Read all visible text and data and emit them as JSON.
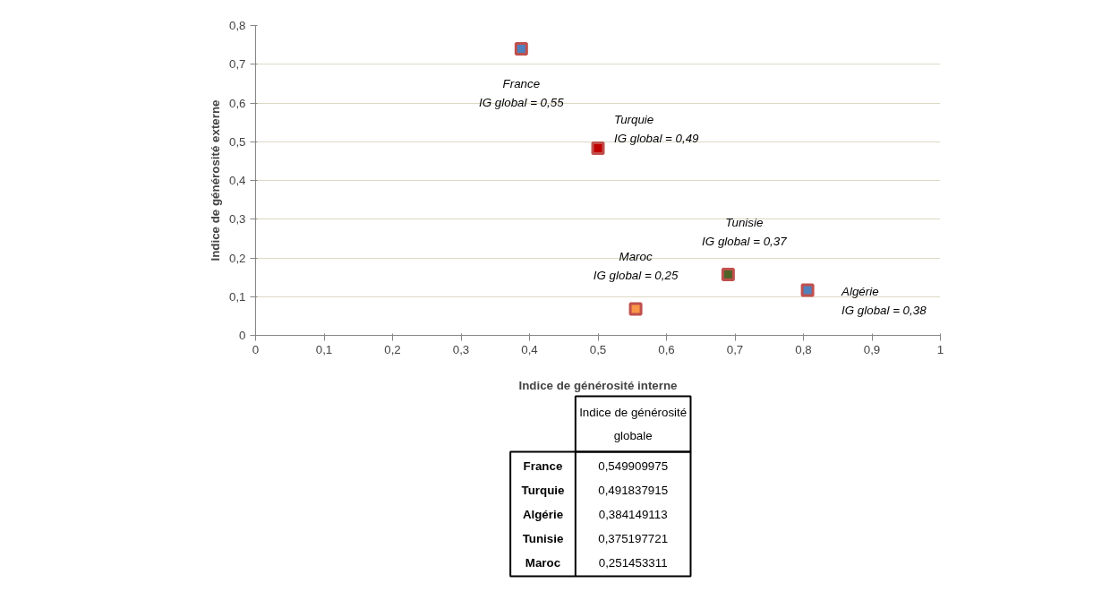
{
  "chart_data": [
    {
      "type": "scatter",
      "xlabel": "Indice de générosité interne",
      "ylabel": "Indice de générosité externe",
      "x": [
        0.388,
        0.5,
        0.555,
        0.69,
        0.806
      ],
      "values": [
        0.74,
        0.483,
        0.068,
        0.157,
        0.117
      ],
      "colors": [
        "#4f81bd",
        "#c00000",
        "#f79646",
        "#4f6228",
        "#4f81bd"
      ],
      "marker": "square",
      "grid": "y",
      "xlim": [
        0,
        1
      ],
      "ylim": [
        0,
        0.8
      ],
      "xticks": [
        0,
        {
          "value": 0.1,
          "label": "0,1"
        },
        {
          "value": 0.2,
          "label": "0,2"
        },
        {
          "value": 0.3,
          "label": "0,3"
        },
        {
          "value": 0.4,
          "label": "0,4"
        },
        {
          "value": 0.5,
          "label": "0,5"
        },
        {
          "value": 0.6,
          "label": "0,6"
        },
        {
          "value": 0.7,
          "label": "0,7"
        },
        {
          "value": 0.8,
          "label": "0,8"
        },
        {
          "value": 0.9,
          "label": "0,9"
        },
        1
      ],
      "yticks": [
        0,
        {
          "value": 0.1,
          "label": "0,1"
        },
        {
          "value": 0.2,
          "label": "0,2"
        },
        {
          "value": 0.3,
          "label": "0,3"
        },
        {
          "value": 0.4,
          "label": "0,4"
        },
        {
          "value": 0.5,
          "label": "0,5"
        },
        {
          "value": 0.6,
          "label": "0,6"
        },
        {
          "value": 0.7,
          "label": "0,7"
        },
        {
          "value": 0.8,
          "label": "0,8"
        }
      ],
      "annotations": [
        {
          "text": "France\nIG global = 0,55",
          "x": 0.388,
          "y": 0.74
        },
        {
          "text": "Turquie\nIG global = 0,49",
          "x": 0.5,
          "y": 0.483
        },
        {
          "text": "Maroc\nIG global = 0,25",
          "x": 0.555,
          "y": 0.068
        },
        {
          "text": "Tunisie\nIG global = 0,37",
          "x": 0.69,
          "y": 0.157
        },
        {
          "text": "Algérie\nIG global = 0,38",
          "x": 0.806,
          "y": 0.117
        }
      ]
    },
    {
      "type": "other",
      "title": "Indice de générosité globale",
      "categories": [
        "France",
        "Turquie",
        "Algérie",
        "Tunisie",
        "Maroc"
      ],
      "annotations": [
        "0,549909975",
        "0,491837915",
        "0,384149113",
        "0,375197721",
        "0,251453311"
      ]
    }
  ]
}
